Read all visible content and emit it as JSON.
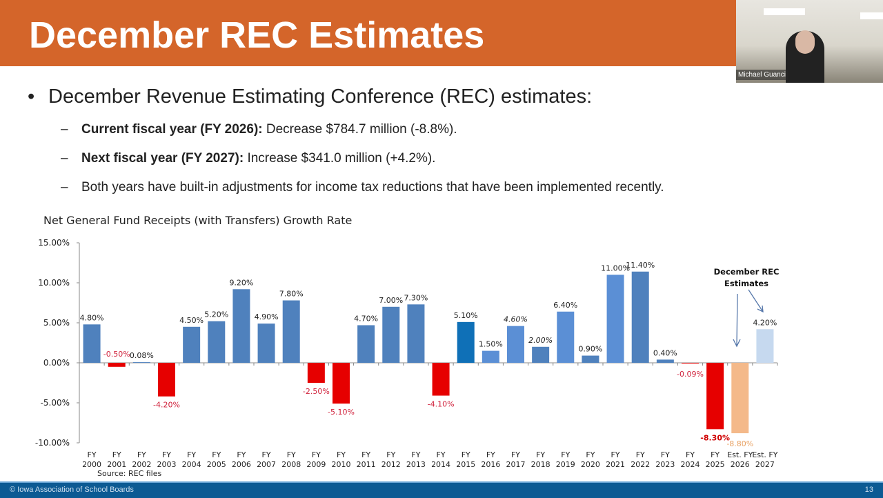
{
  "slide": {
    "title": "December REC Estimates",
    "bullet": "December Revenue Estimating Conference (REC) estimates:",
    "subbullets": [
      {
        "bold": "Current fiscal year (FY 2026):",
        "text": " Decrease $784.7 million (-8.8%)."
      },
      {
        "bold": "Next fiscal year (FY 2027):",
        "text": " Increase $341.0 million (+4.2%)."
      },
      {
        "bold": "",
        "text": "Both years have built-in adjustments for income tax reductions that have been implemented recently."
      }
    ],
    "footer": "© Iowa Association of School Boards",
    "page_number": "13"
  },
  "video": {
    "participant_name": "Michael Guanci"
  },
  "chart_data": {
    "type": "bar",
    "title": "Net General Fund Receipts (with Transfers) Growth Rate",
    "source": "Source:  REC files",
    "annotation": "December REC Estimates",
    "ylim": [
      -10,
      15
    ],
    "yticks": [
      "15.00%",
      "10.00%",
      "5.00%",
      "0.00%",
      "-5.00%",
      "-10.00%"
    ],
    "ytick_values": [
      15,
      10,
      5,
      0,
      -5,
      -10
    ],
    "grid": false,
    "categories": [
      [
        "FY",
        "2000"
      ],
      [
        "FY",
        "2001"
      ],
      [
        "FY",
        "2002"
      ],
      [
        "FY",
        "2003"
      ],
      [
        "FY",
        "2004"
      ],
      [
        "FY",
        "2005"
      ],
      [
        "FY",
        "2006"
      ],
      [
        "FY",
        "2007"
      ],
      [
        "FY",
        "2008"
      ],
      [
        "FY",
        "2009"
      ],
      [
        "FY",
        "2010"
      ],
      [
        "FY",
        "2011"
      ],
      [
        "FY",
        "2012"
      ],
      [
        "FY",
        "2013"
      ],
      [
        "FY",
        "2014"
      ],
      [
        "FY",
        "2015"
      ],
      [
        "FY",
        "2016"
      ],
      [
        "FY",
        "2017"
      ],
      [
        "FY",
        "2018"
      ],
      [
        "FY",
        "2019"
      ],
      [
        "FY",
        "2020"
      ],
      [
        "FY",
        "2021"
      ],
      [
        "FY",
        "2022"
      ],
      [
        "FY",
        "2023"
      ],
      [
        "FY",
        "2024"
      ],
      [
        "FY",
        "2025"
      ],
      [
        "Est. FY",
        "2026"
      ],
      [
        "Est. FY",
        "2027"
      ]
    ],
    "values": [
      4.8,
      -0.5,
      0.08,
      -4.2,
      4.5,
      5.2,
      9.2,
      4.9,
      7.8,
      -2.5,
      -5.1,
      4.7,
      7.0,
      7.3,
      -4.1,
      5.1,
      1.5,
      4.6,
      2.0,
      6.4,
      0.9,
      11.0,
      11.4,
      0.4,
      -0.09,
      -8.3,
      -8.8,
      4.2
    ],
    "labels": [
      "4.80%",
      "-0.50%",
      "0.08%",
      "-4.20%",
      "4.50%",
      "5.20%",
      "9.20%",
      "4.90%",
      "7.80%",
      "-2.50%",
      "-5.10%",
      "4.70%",
      "7.00%",
      "7.30%",
      "-4.10%",
      "5.10%",
      "1.50%",
      "4.60%",
      "2.00%",
      "6.40%",
      "0.90%",
      "11.00%",
      "11.40%",
      "0.40%",
      "-0.09%",
      "-8.30%",
      "-8.80%",
      "4.20%"
    ],
    "colors": {
      "positive": "#4f81bd",
      "negative": "#e60000",
      "fy2015": "#0f70b7",
      "fy2021": "#5b8fd5",
      "estimate_fy2026": "#f4b98a",
      "estimate_fy2027": "#c6d9ef",
      "negative_label": "#d0213b",
      "estimate_label": "#e8a060"
    }
  }
}
